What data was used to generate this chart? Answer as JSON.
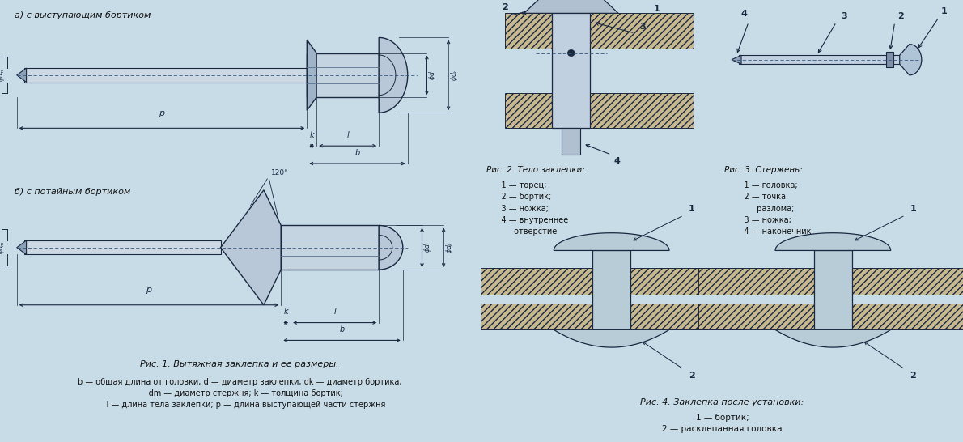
{
  "bg_left": "#c8dce8",
  "bg_right_top": "#b8cedd",
  "bg_right_bot": "#aac4d4",
  "lc": "#1a2840",
  "title_a": "а) с выступающим бортиком",
  "title_b": "б) с потайным бортиком",
  "cap1": "Рис. 1. Вытяжная заклепка и ее размеры:",
  "cap1b": "b — общая длина от головки; d — диаметр заклепки; dk — диаметр бортика;\n     dm — диаметр стержня; k — толщина бортик;\n     l — длина тела заклепки; p — длина выступающей части стержня",
  "cap2": "Рис. 2. Тело заклепки:",
  "cap2b": "    1 — торец;\n    2 — бортик;\n    3 — ножка;\n    4 — внутреннее\n         отверстие",
  "cap3": "Рис. 3. Стержень:",
  "cap3b": "    1 — головка;\n    2 — точка\n         разлома;\n    3 — ножка;\n    4 — наконечник",
  "cap4": "Рис. 4. Заклепка после установки:",
  "cap4b": "1 — бортик;\n2 — расклепанная головка"
}
